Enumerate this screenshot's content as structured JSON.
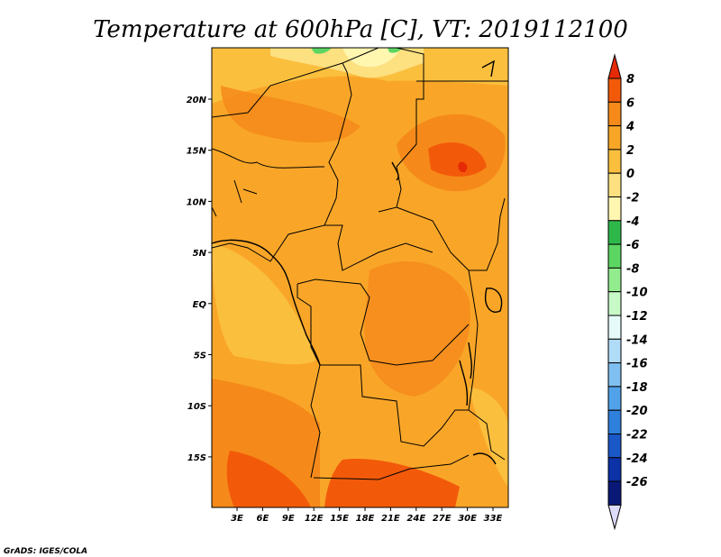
{
  "title": "Temperature at 600hPa [C], VT: 2019112100",
  "credit": "GrADS: IGES/COLA",
  "map": {
    "lat_labels": [
      "20N",
      "15N",
      "10N",
      "5N",
      "EQ",
      "5S",
      "10S",
      "15S"
    ],
    "lon_labels": [
      "3E",
      "6E",
      "9E",
      "12E",
      "15E",
      "18E",
      "21E",
      "24E",
      "27E",
      "30E",
      "33E"
    ]
  },
  "colorbar": {
    "labels": [
      "8",
      "6",
      "4",
      "2",
      "0",
      "-2",
      "-4",
      "-6",
      "-8",
      "-10",
      "-12",
      "-14",
      "-16",
      "-18",
      "-20",
      "-22",
      "-24",
      "-26"
    ],
    "colors": [
      "#e62a06",
      "#f25a0a",
      "#f58a1a",
      "#f9a628",
      "#fbbf3e",
      "#fde080",
      "#fff6b0",
      "#2fb84a",
      "#5cd662",
      "#92ec8e",
      "#c8fac8",
      "#e6fafa",
      "#b0dcf8",
      "#80c0f0",
      "#52a2ea",
      "#2f80dc",
      "#1a58c8",
      "#0c32a8",
      "#0a1878",
      "#dcdcfa"
    ]
  },
  "chart_data": {
    "type": "heatmap",
    "title": "Temperature at 600hPa [C], VT: 2019112100",
    "variable": "Temperature at 600hPa",
    "units": "C",
    "valid_time": "2019112100",
    "x_ticks": [
      "3E",
      "6E",
      "9E",
      "12E",
      "15E",
      "18E",
      "21E",
      "24E",
      "27E",
      "30E",
      "33E"
    ],
    "y_ticks": [
      "20N",
      "15N",
      "10N",
      "5N",
      "EQ",
      "5S",
      "10S",
      "15S"
    ],
    "lon_range": [
      0,
      34
    ],
    "lat_range": [
      -20,
      24.5
    ],
    "colorbar_levels": [
      8,
      6,
      4,
      2,
      0,
      -2,
      -4,
      -6,
      -8,
      -10,
      -12,
      -14,
      -16,
      -18,
      -20,
      -22,
      -24,
      -26
    ],
    "dominant_range": [
      0,
      6
    ]
  }
}
